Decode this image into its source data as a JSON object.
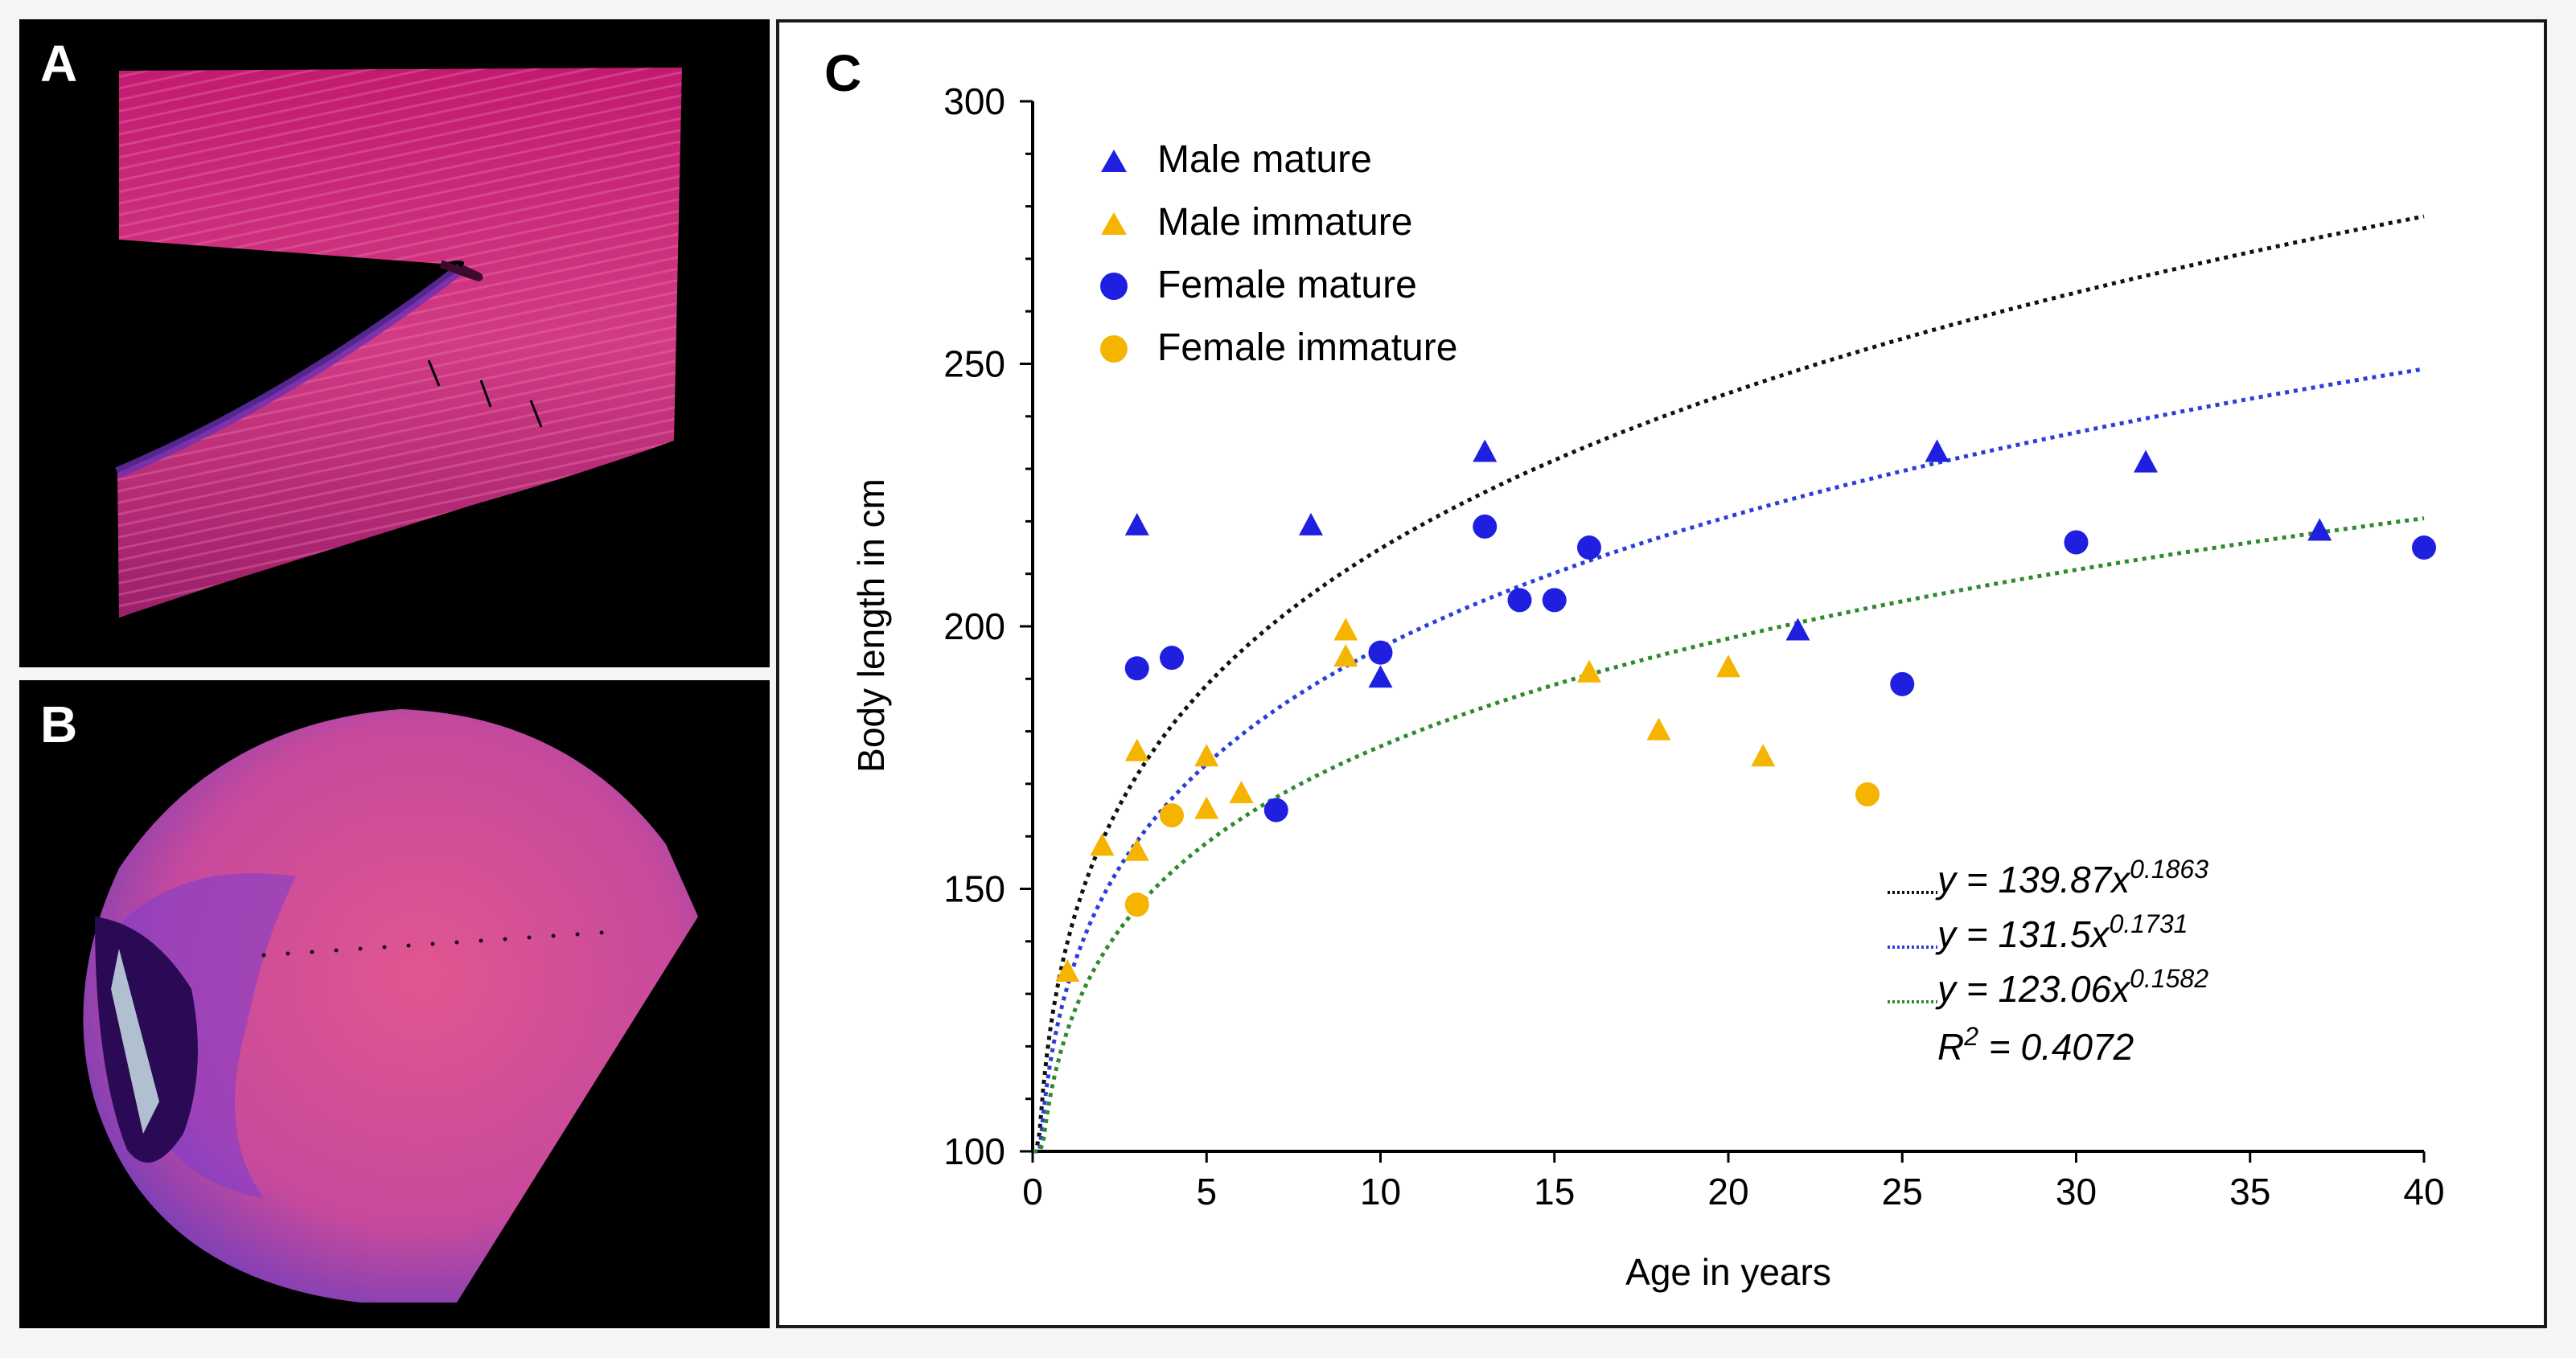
{
  "panels": {
    "a": {
      "label": "A"
    },
    "b": {
      "label": "B"
    },
    "c": {
      "label": "C"
    }
  },
  "colors": {
    "male_mature": "#1f1fe0",
    "male_immature": "#f5b400",
    "female_mature": "#1f1fe0",
    "female_immature": "#f5b400",
    "fit_all": "#111111",
    "fit_mature": "#2a3fd8",
    "fit_immature": "#2f8a2f"
  },
  "chart_data": {
    "type": "scatter",
    "xlabel": "Age in years",
    "ylabel": "Body length in cm",
    "xlim": [
      0,
      40
    ],
    "ylim": [
      100,
      300
    ],
    "xticks": [
      0,
      5,
      10,
      15,
      20,
      25,
      30,
      35,
      40
    ],
    "yticks": [
      100,
      150,
      200,
      250,
      300
    ],
    "legend_position": "top-left",
    "series": [
      {
        "name": "Male mature",
        "marker": "triangle",
        "color": "#1f1fe0",
        "x": [
          3,
          8,
          10,
          13,
          22,
          26,
          32,
          37
        ],
        "y": [
          219,
          219,
          190,
          233,
          199,
          233,
          231,
          218
        ]
      },
      {
        "name": "Male immature",
        "marker": "triangle",
        "color": "#f5b400",
        "x": [
          1,
          2,
          3,
          3,
          5,
          5,
          6,
          9,
          9,
          16,
          18,
          20,
          21
        ],
        "y": [
          134,
          158,
          157,
          176,
          165,
          175,
          168,
          199,
          194,
          191,
          180,
          192,
          175
        ]
      },
      {
        "name": "Female mature",
        "marker": "circle",
        "color": "#1f1fe0",
        "x": [
          3,
          4,
          7,
          10,
          13,
          14,
          15,
          16,
          25,
          30,
          40
        ],
        "y": [
          192,
          194,
          165,
          195,
          219,
          205,
          205,
          215,
          189,
          216,
          215
        ]
      },
      {
        "name": "Female immature",
        "marker": "circle",
        "color": "#f5b400",
        "x": [
          3,
          4,
          24
        ],
        "y": [
          147,
          164,
          168
        ]
      }
    ],
    "fits": [
      {
        "a": 139.87,
        "b": 0.1863,
        "color": "#111111",
        "y_label": "y = ",
        "coef_label": "139.87x",
        "exp_label": "0.1863"
      },
      {
        "a": 131.5,
        "b": 0.1731,
        "color": "#2a3fd8",
        "y_label": "y = ",
        "coef_label": "131.5x",
        "exp_label": "0.1731"
      },
      {
        "a": 123.06,
        "b": 0.1582,
        "color": "#2f8a2f",
        "y_label": "y = ",
        "coef_label": "123.06x",
        "exp_label": "0.1582"
      }
    ],
    "r2": {
      "r_label": "R",
      "sup_label": "2",
      "value_label": " = 0.4072"
    }
  }
}
